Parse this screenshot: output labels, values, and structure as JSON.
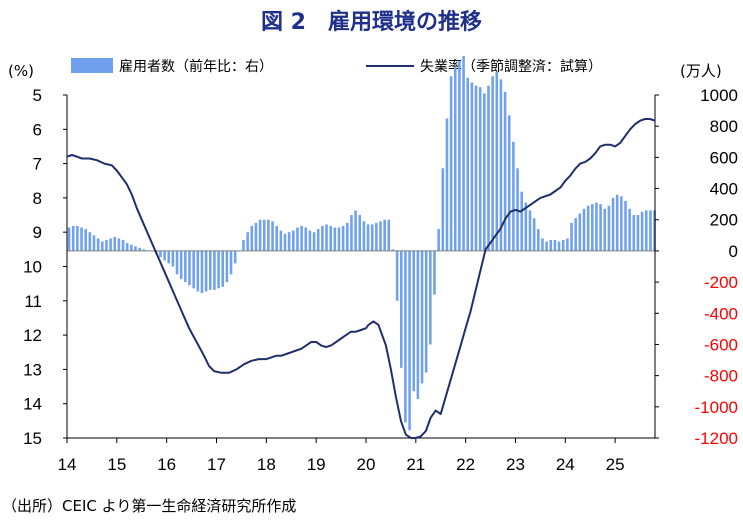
{
  "title": "図 2　雇用環境の推移",
  "source": "（出所）CEIC より第一生命経済研究所作成",
  "chart_data": {
    "type": "bar+line",
    "left_unit": "(%)",
    "right_unit": "(万人)",
    "legend": [
      {
        "name": "雇用者数（前年比：右）",
        "kind": "bar",
        "color": "#6fa1ef"
      },
      {
        "name": "失業率（季節調整済：試算）",
        "kind": "line",
        "color": "#1f2f6e"
      }
    ],
    "colors": {
      "bar": "#6fa1ef",
      "line": "#1f2f6e",
      "negative_tick": "#ff0000",
      "axis": "#000000"
    },
    "x_start": 14.0,
    "x_end": 25.8,
    "x_ticks": [
      "14",
      "15",
      "16",
      "17",
      "18",
      "19",
      "20",
      "21",
      "22",
      "23",
      "24",
      "25"
    ],
    "y_left": {
      "min": 5,
      "max": 15,
      "inverted": true,
      "ticks": [
        5,
        6,
        7,
        8,
        9,
        10,
        11,
        12,
        13,
        14,
        15
      ]
    },
    "y_right": {
      "min": -1200,
      "max": 1000,
      "ticks": [
        1000,
        800,
        600,
        400,
        200,
        0,
        -200,
        -400,
        -600,
        -800,
        -1000,
        -1200
      ],
      "tick_labels": [
        "1000",
        "800",
        "600",
        "400",
        "200",
        "0",
        "-200",
        "-400",
        "-600",
        "-800",
        "-1000",
        "-1200"
      ]
    },
    "bars_monthly_from": 14.0,
    "bars": [
      150,
      160,
      160,
      150,
      140,
      120,
      100,
      80,
      60,
      70,
      80,
      90,
      80,
      70,
      50,
      40,
      30,
      20,
      10,
      0,
      0,
      -20,
      -40,
      -60,
      -80,
      -100,
      -150,
      -180,
      -200,
      -220,
      -240,
      -260,
      -270,
      -260,
      -250,
      -250,
      -240,
      -230,
      -200,
      -150,
      -80,
      0,
      70,
      120,
      160,
      180,
      200,
      200,
      200,
      190,
      160,
      130,
      110,
      120,
      130,
      150,
      160,
      150,
      130,
      120,
      140,
      160,
      170,
      160,
      150,
      150,
      160,
      180,
      230,
      260,
      230,
      190,
      170,
      170,
      180,
      190,
      200,
      200,
      10,
      -320,
      -750,
      -1100,
      -1150,
      -900,
      -950,
      -850,
      -780,
      -600,
      -280,
      140,
      530,
      850,
      1120,
      1180,
      1220,
      1250,
      1110,
      1080,
      1060,
      1050,
      1010,
      1060,
      1120,
      1150,
      1100,
      1020,
      870,
      700,
      530,
      380,
      310,
      260,
      210,
      140,
      80,
      60,
      70,
      70,
      60,
      70,
      80,
      180,
      210,
      240,
      270,
      290,
      300,
      310,
      300,
      270,
      290,
      340,
      360,
      350,
      320,
      270,
      230,
      230,
      250,
      260,
      260,
      260,
      250,
      190,
      140
    ],
    "line_points": [
      [
        14.0,
        6.8
      ],
      [
        14.1,
        6.75
      ],
      [
        14.2,
        6.8
      ],
      [
        14.3,
        6.85
      ],
      [
        14.45,
        6.85
      ],
      [
        14.6,
        6.9
      ],
      [
        14.75,
        7.0
      ],
      [
        14.9,
        7.05
      ],
      [
        15.0,
        7.2
      ],
      [
        15.1,
        7.4
      ],
      [
        15.2,
        7.6
      ],
      [
        15.3,
        7.9
      ],
      [
        15.4,
        8.3
      ],
      [
        15.55,
        8.8
      ],
      [
        15.7,
        9.3
      ],
      [
        15.85,
        9.8
      ],
      [
        16.0,
        10.3
      ],
      [
        16.15,
        10.8
      ],
      [
        16.3,
        11.3
      ],
      [
        16.45,
        11.8
      ],
      [
        16.6,
        12.2
      ],
      [
        16.75,
        12.6
      ],
      [
        16.85,
        12.9
      ],
      [
        16.95,
        13.05
      ],
      [
        17.1,
        13.1
      ],
      [
        17.25,
        13.1
      ],
      [
        17.4,
        13.0
      ],
      [
        17.55,
        12.85
      ],
      [
        17.7,
        12.75
      ],
      [
        17.85,
        12.7
      ],
      [
        18.0,
        12.7
      ],
      [
        18.1,
        12.65
      ],
      [
        18.2,
        12.6
      ],
      [
        18.3,
        12.6
      ],
      [
        18.4,
        12.55
      ],
      [
        18.5,
        12.5
      ],
      [
        18.6,
        12.45
      ],
      [
        18.7,
        12.4
      ],
      [
        18.8,
        12.3
      ],
      [
        18.9,
        12.2
      ],
      [
        19.0,
        12.2
      ],
      [
        19.1,
        12.3
      ],
      [
        19.2,
        12.35
      ],
      [
        19.3,
        12.3
      ],
      [
        19.4,
        12.2
      ],
      [
        19.5,
        12.1
      ],
      [
        19.6,
        12.0
      ],
      [
        19.7,
        11.9
      ],
      [
        19.8,
        11.9
      ],
      [
        19.9,
        11.85
      ],
      [
        20.0,
        11.8
      ],
      [
        20.05,
        11.7
      ],
      [
        20.15,
        11.6
      ],
      [
        20.25,
        11.7
      ],
      [
        20.3,
        11.9
      ],
      [
        20.4,
        12.3
      ],
      [
        20.5,
        13.0
      ],
      [
        20.6,
        13.8
      ],
      [
        20.7,
        14.5
      ],
      [
        20.8,
        14.9
      ],
      [
        20.9,
        15.0
      ],
      [
        21.0,
        15.0
      ],
      [
        21.1,
        14.95
      ],
      [
        21.2,
        14.8
      ],
      [
        21.3,
        14.4
      ],
      [
        21.4,
        14.2
      ],
      [
        21.5,
        14.3
      ],
      [
        21.6,
        13.8
      ],
      [
        21.7,
        13.3
      ],
      [
        21.8,
        12.8
      ],
      [
        21.9,
        12.3
      ],
      [
        22.0,
        11.8
      ],
      [
        22.1,
        11.3
      ],
      [
        22.2,
        10.7
      ],
      [
        22.3,
        10.1
      ],
      [
        22.4,
        9.5
      ],
      [
        22.5,
        9.3
      ],
      [
        22.6,
        9.1
      ],
      [
        22.7,
        8.9
      ],
      [
        22.8,
        8.6
      ],
      [
        22.9,
        8.4
      ],
      [
        23.0,
        8.35
      ],
      [
        23.1,
        8.4
      ],
      [
        23.2,
        8.3
      ],
      [
        23.3,
        8.2
      ],
      [
        23.4,
        8.1
      ],
      [
        23.5,
        8.0
      ],
      [
        23.6,
        7.95
      ],
      [
        23.7,
        7.9
      ],
      [
        23.8,
        7.8
      ],
      [
        23.9,
        7.7
      ],
      [
        24.0,
        7.5
      ],
      [
        24.1,
        7.35
      ],
      [
        24.2,
        7.15
      ],
      [
        24.3,
        7.0
      ],
      [
        24.4,
        6.95
      ],
      [
        24.5,
        6.85
      ],
      [
        24.6,
        6.7
      ],
      [
        24.7,
        6.5
      ],
      [
        24.8,
        6.45
      ],
      [
        24.9,
        6.45
      ],
      [
        25.0,
        6.5
      ],
      [
        25.1,
        6.4
      ],
      [
        25.2,
        6.2
      ],
      [
        25.3,
        6.0
      ],
      [
        25.4,
        5.85
      ],
      [
        25.5,
        5.75
      ],
      [
        25.6,
        5.7
      ],
      [
        25.7,
        5.7
      ],
      [
        25.8,
        5.75
      ]
    ]
  }
}
